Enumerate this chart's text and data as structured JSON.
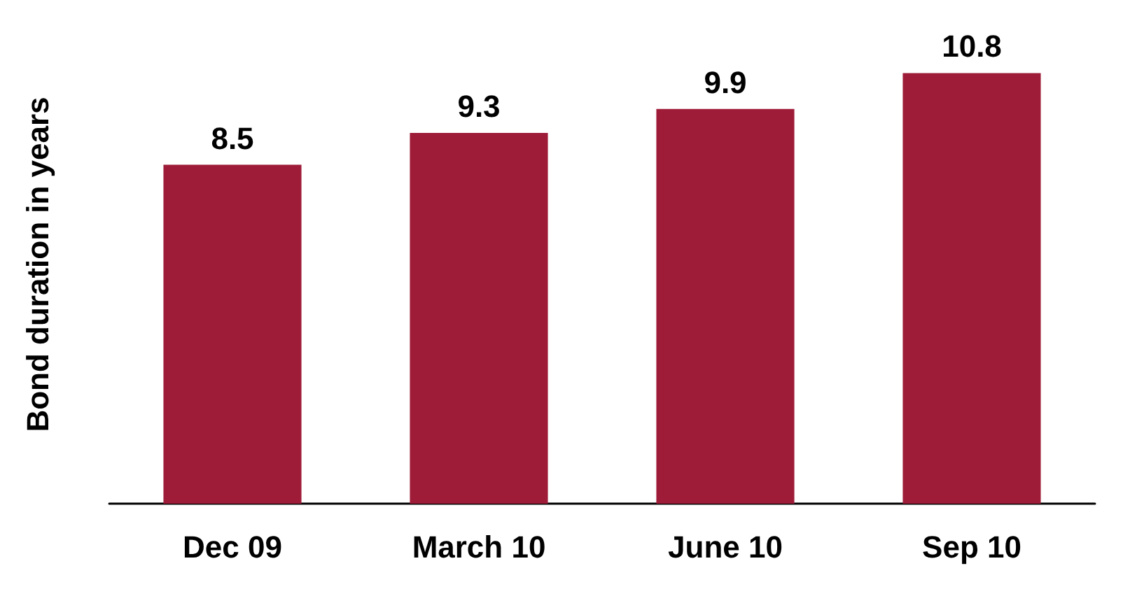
{
  "chart_data": {
    "type": "bar",
    "ylabel": "Bond duration in years",
    "categories": [
      "Dec 09",
      "March 10",
      "June 10",
      "Sep 10"
    ],
    "values": [
      8.5,
      9.3,
      9.9,
      10.8
    ],
    "color": "#9e1c38",
    "data_labels": true
  }
}
